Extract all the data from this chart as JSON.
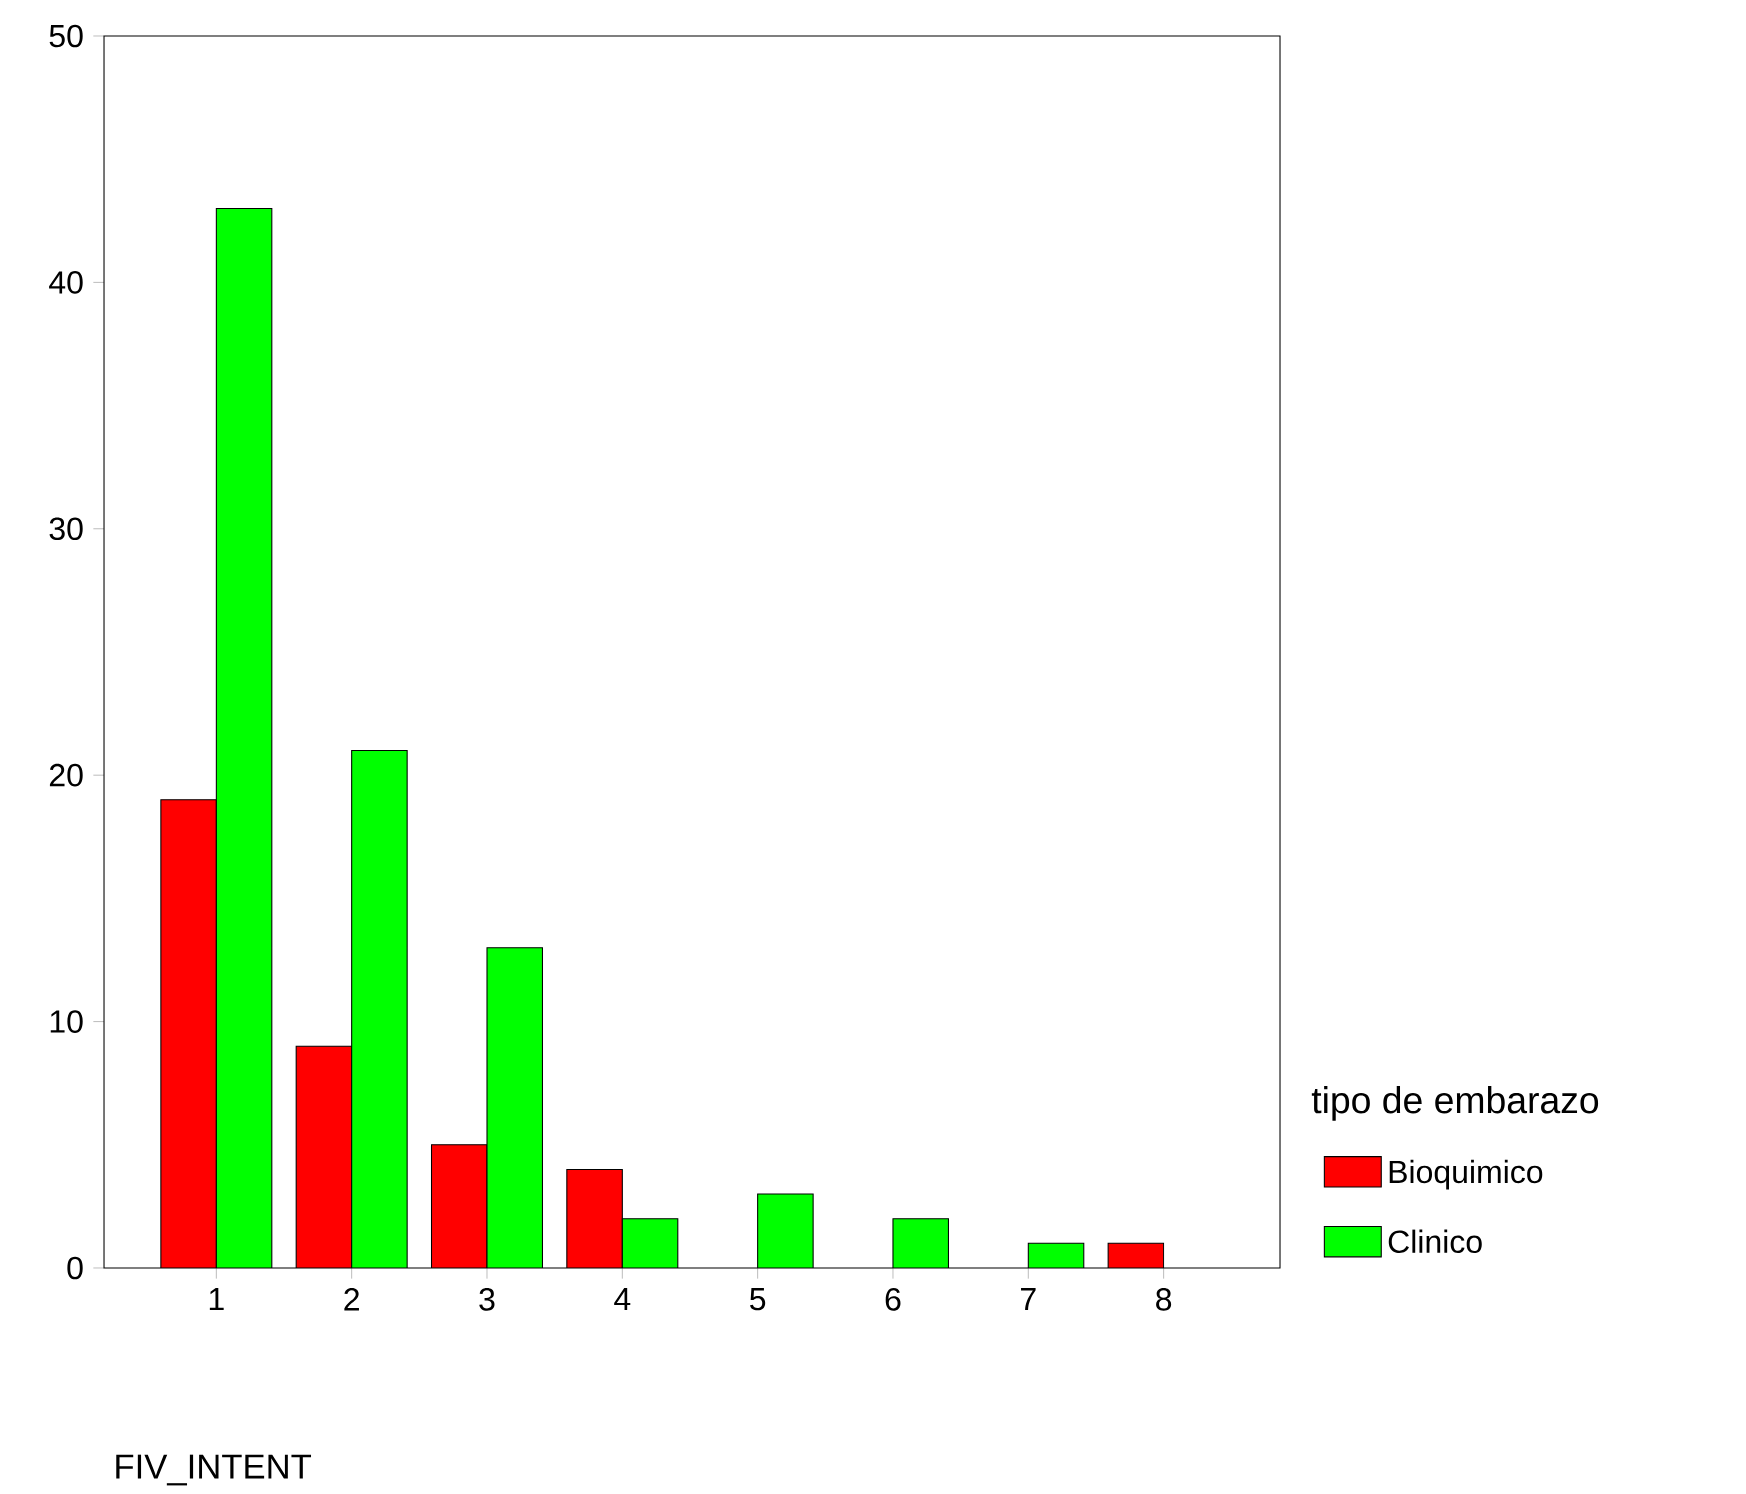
{
  "chart_data": {
    "type": "bar",
    "xlabel": "FIV_INTENT",
    "legend_title": "tipo de embarazo",
    "categories": [
      "1",
      "2",
      "3",
      "4",
      "5",
      "6",
      "7",
      "8"
    ],
    "series": [
      {
        "name": "Bioquimico",
        "color": "#ff0000",
        "values": [
          19,
          9,
          5,
          4,
          null,
          null,
          null,
          1
        ]
      },
      {
        "name": "Clinico",
        "color": "#00ff00",
        "values": [
          43,
          21,
          13,
          2,
          3,
          2,
          1,
          null
        ]
      }
    ],
    "ylim": [
      0,
      50
    ],
    "yticks": [
      0,
      10,
      20,
      30,
      40,
      50
    ],
    "grid": false,
    "legend": "right"
  }
}
